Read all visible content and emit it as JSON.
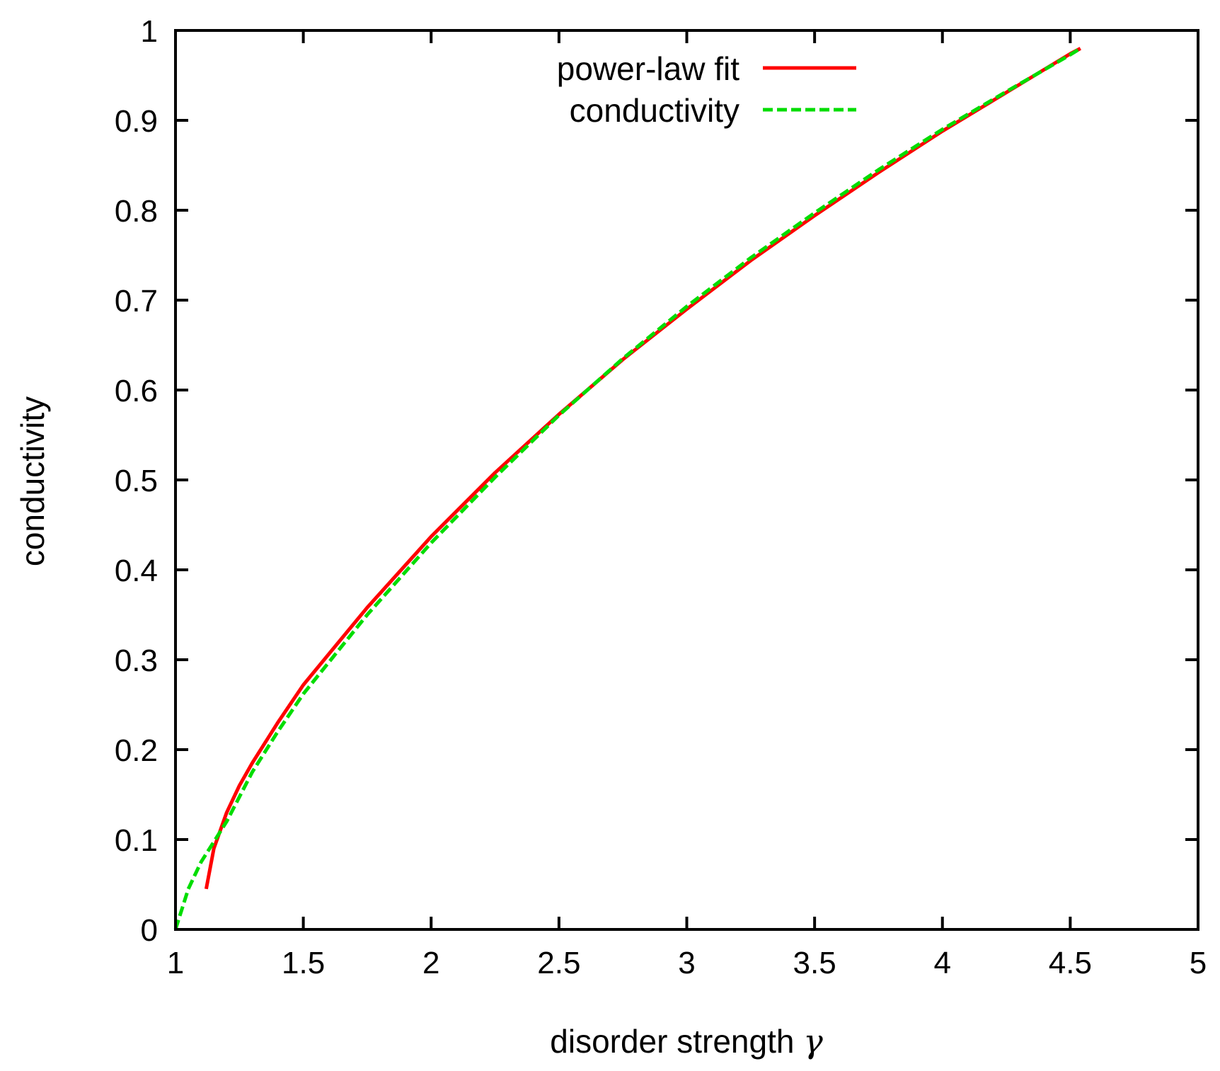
{
  "chart_data": {
    "type": "line",
    "title": "",
    "xlabel": "disorder strength",
    "xlabel_symbol": "γ",
    "ylabel": "conductivity",
    "xlim": [
      1,
      5
    ],
    "ylim": [
      0,
      1
    ],
    "xticks": [
      "1",
      "1.5",
      "2",
      "2.5",
      "3",
      "3.5",
      "4",
      "4.5",
      "5"
    ],
    "yticks": [
      "0",
      "0.1",
      "0.2",
      "0.3",
      "0.4",
      "0.5",
      "0.6",
      "0.7",
      "0.8",
      "0.9",
      "1"
    ],
    "grid": false,
    "legend_position": "top-center",
    "series": [
      {
        "name": "power-law fit",
        "color": "#ff0000",
        "style": "solid",
        "x": [
          1.12,
          1.15,
          1.2,
          1.25,
          1.3,
          1.4,
          1.5,
          1.75,
          2.0,
          2.25,
          2.5,
          2.75,
          3.0,
          3.25,
          3.5,
          3.75,
          4.0,
          4.25,
          4.5,
          4.54
        ],
        "y": [
          0.045,
          0.09,
          0.13,
          0.16,
          0.185,
          0.23,
          0.272,
          0.358,
          0.437,
          0.508,
          0.573,
          0.634,
          0.69,
          0.744,
          0.794,
          0.842,
          0.888,
          0.931,
          0.974,
          0.98
        ]
      },
      {
        "name": "conductivity",
        "color": "#00dd00",
        "style": "dashed",
        "x": [
          1.0,
          1.05,
          1.1,
          1.2,
          1.3,
          1.4,
          1.5,
          1.75,
          2.0,
          2.25,
          2.5,
          2.75,
          3.0,
          3.25,
          3.5,
          3.75,
          4.0,
          4.25,
          4.5,
          4.54
        ],
        "y": [
          0.0,
          0.045,
          0.075,
          0.12,
          0.175,
          0.22,
          0.262,
          0.35,
          0.43,
          0.503,
          0.572,
          0.635,
          0.693,
          0.747,
          0.797,
          0.845,
          0.89,
          0.932,
          0.973,
          0.98
        ]
      }
    ]
  }
}
